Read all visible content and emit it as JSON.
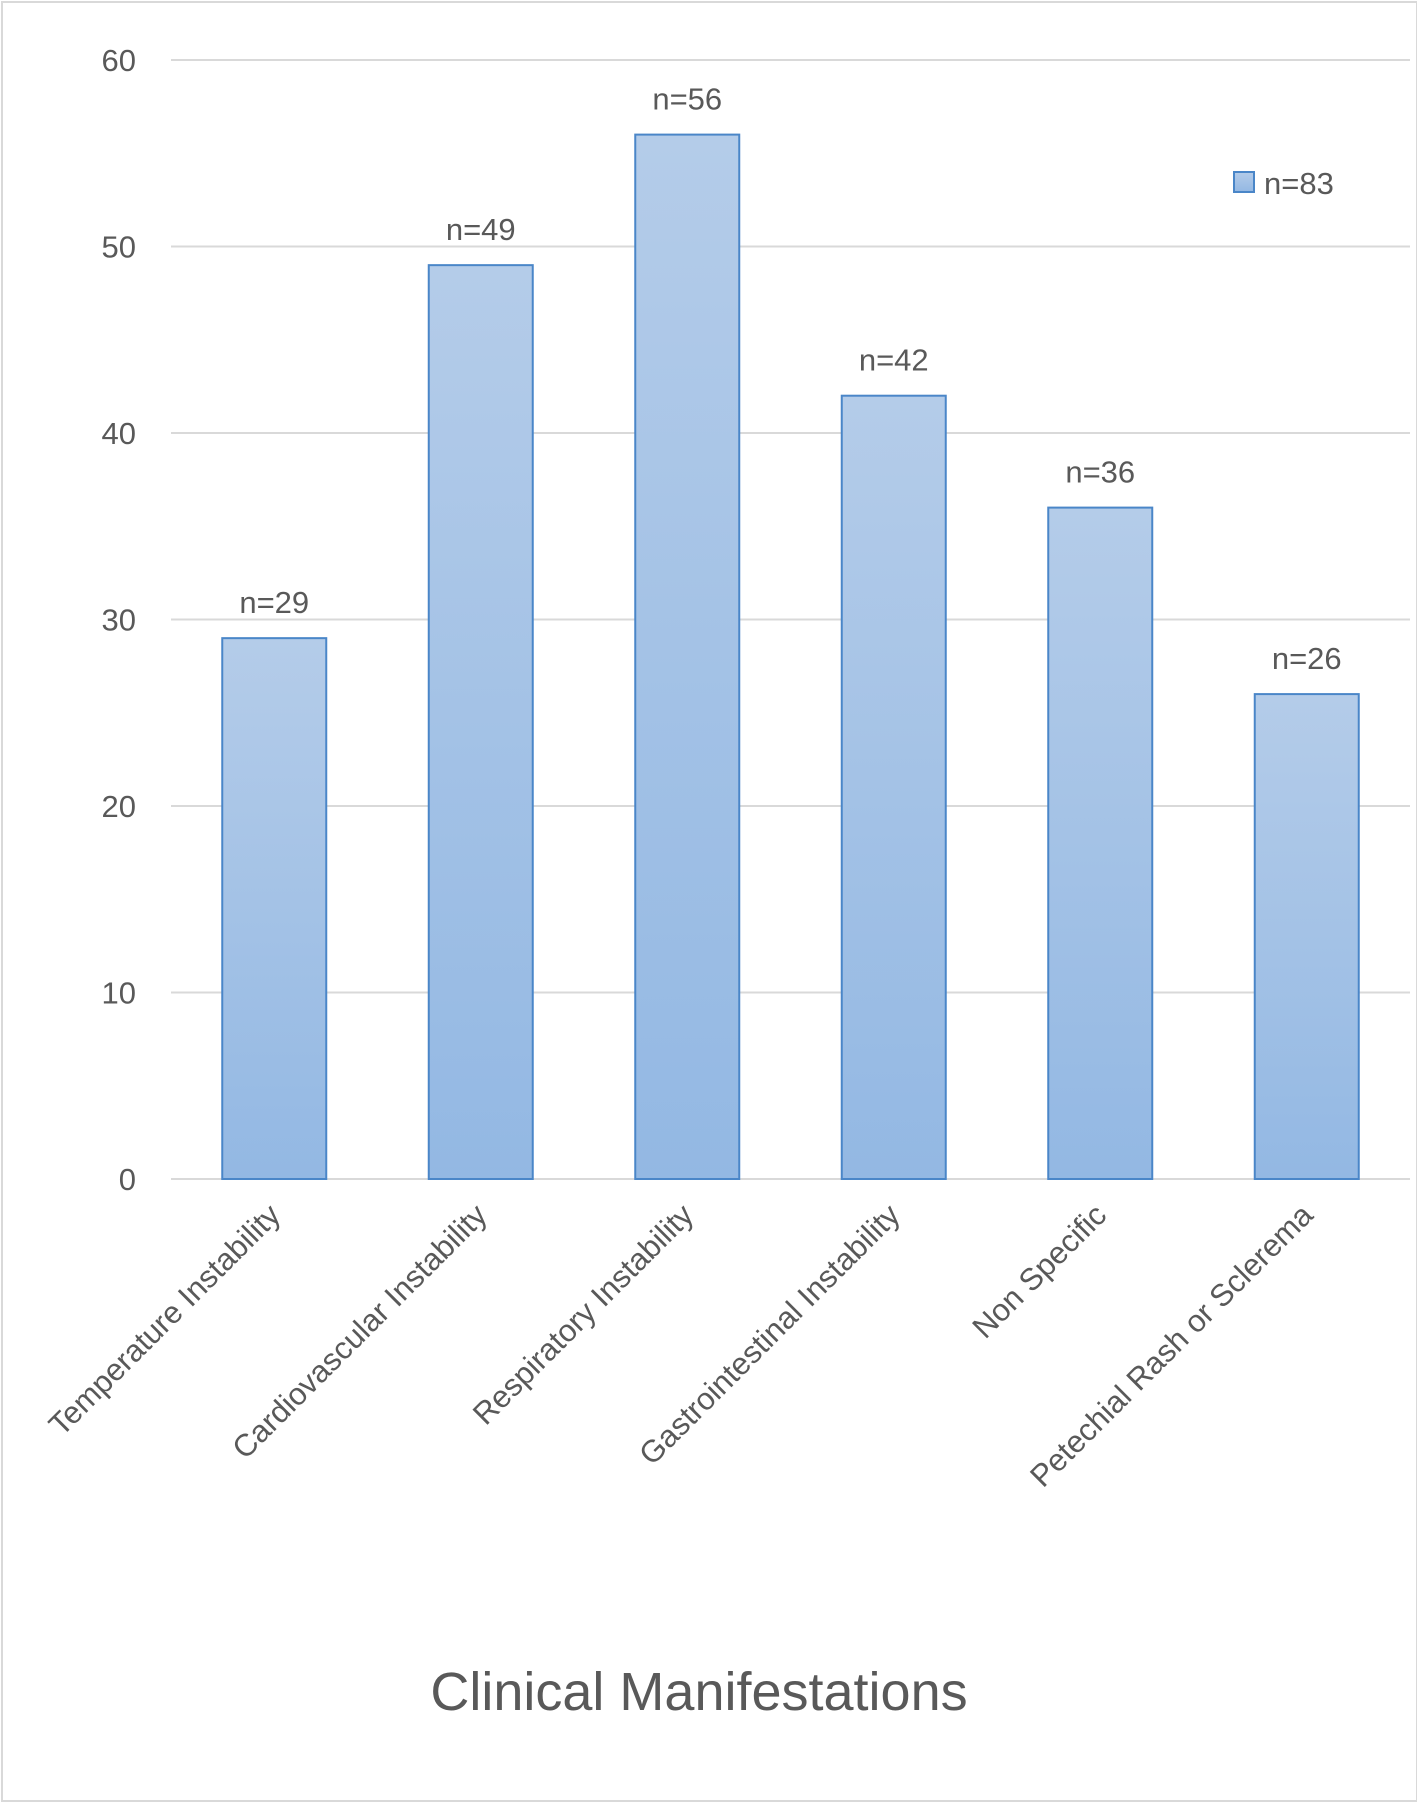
{
  "chart_data": {
    "type": "bar",
    "categories": [
      "Temperature Instability",
      "Cardiovascular Instability",
      "Respiratory Instability",
      "Gastrointestinal Instability",
      "Non Specific",
      "Petechial Rash or Sclerema"
    ],
    "series": [
      {
        "name": "n=83",
        "values": [
          29,
          49,
          56,
          42,
          36,
          26
        ],
        "data_labels": [
          "n=29",
          "n=49",
          "n=56",
          "n=42",
          "n=36",
          "n=26"
        ]
      }
    ],
    "title": "",
    "xlabel": "Clinical Manifestations",
    "ylabel": "",
    "ylim": [
      0,
      60
    ],
    "yticks": [
      0,
      10,
      20,
      30,
      40,
      50,
      60
    ],
    "grid": true,
    "legend_position": "top-right",
    "colors": {
      "bar_top": "#b4cce9",
      "bar_bottom": "#93b8e3",
      "bar_border": "#4a86c8",
      "grid": "#d9d9d9",
      "text": "#595959"
    }
  }
}
